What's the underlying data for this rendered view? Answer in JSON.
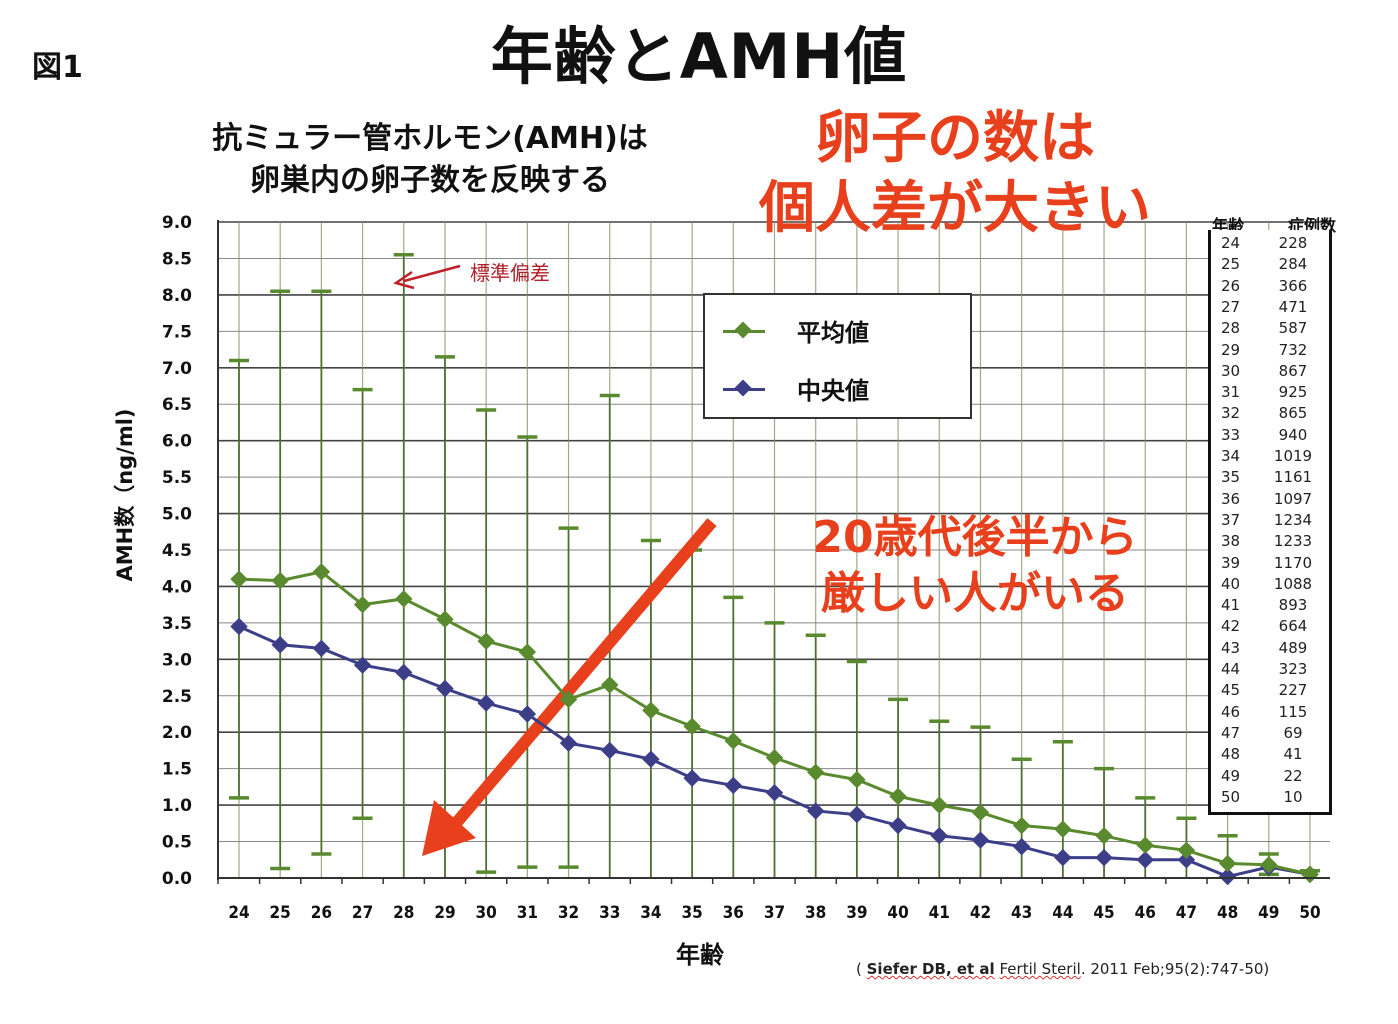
{
  "figure_label": "図1",
  "title": "年齢とAMH値",
  "subtitle_lines": [
    "抗ミュラー管ホルモン(AMH)は",
    "卵巣内の卵子数を反映する"
  ],
  "annotations": {
    "red_note_1": [
      "卵子の数は",
      "個人差が大きい"
    ],
    "red_note_2": [
      "20歳代後半から",
      "厳しい人がいる"
    ],
    "sd_label": "標準偏差",
    "accent_color": "#e8401c"
  },
  "legend": {
    "items": [
      {
        "label": "平均値",
        "color": "#5a8a2e"
      },
      {
        "label": "中央値",
        "color": "#3c3f88"
      }
    ]
  },
  "case_table": {
    "headers": [
      "年齢",
      "症例数"
    ],
    "rows": [
      [
        "24",
        "228"
      ],
      [
        "25",
        "284"
      ],
      [
        "26",
        "366"
      ],
      [
        "27",
        "471"
      ],
      [
        "28",
        "587"
      ],
      [
        "29",
        "732"
      ],
      [
        "30",
        "867"
      ],
      [
        "31",
        "925"
      ],
      [
        "32",
        "865"
      ],
      [
        "33",
        "940"
      ],
      [
        "34",
        "1019"
      ],
      [
        "35",
        "1161"
      ],
      [
        "36",
        "1097"
      ],
      [
        "37",
        "1234"
      ],
      [
        "38",
        "1233"
      ],
      [
        "39",
        "1170"
      ],
      [
        "40",
        "1088"
      ],
      [
        "41",
        "893"
      ],
      [
        "42",
        "664"
      ],
      [
        "43",
        "489"
      ],
      [
        "44",
        "323"
      ],
      [
        "45",
        "227"
      ],
      [
        "46",
        "115"
      ],
      [
        "47",
        "69"
      ],
      [
        "48",
        "41"
      ],
      [
        "49",
        "22"
      ],
      [
        "50",
        "10"
      ]
    ]
  },
  "citation": {
    "open": "( ",
    "author": "Siefer DB, et al",
    "journal": "Fertil Steril",
    "rest": ". 2011 Feb;95(2):747-50)"
  },
  "chart_data": {
    "type": "line",
    "title": "年齢とAMH値",
    "xlabel": "年齢",
    "ylabel": "AMH数（ng/ml)",
    "ylim": [
      0,
      9.0
    ],
    "yticks": [
      "0.0",
      "0.5",
      "1.0",
      "1.5",
      "2.0",
      "2.5",
      "3.0",
      "3.5",
      "4.0",
      "4.5",
      "5.0",
      "5.5",
      "6.0",
      "6.5",
      "7.0",
      "7.5",
      "8.0",
      "8.5",
      "9.0"
    ],
    "grid": true,
    "legend_position": "upper center",
    "x": [
      24,
      25,
      26,
      27,
      28,
      29,
      30,
      31,
      32,
      33,
      34,
      35,
      36,
      37,
      38,
      39,
      40,
      41,
      42,
      43,
      44,
      45,
      46,
      47,
      48,
      49,
      50
    ],
    "series": [
      {
        "name": "平均値",
        "color": "#5a8a2e",
        "marker": "diamond",
        "values": [
          4.1,
          4.08,
          4.2,
          3.75,
          3.83,
          3.55,
          3.25,
          3.1,
          2.45,
          2.65,
          2.3,
          2.08,
          1.88,
          1.65,
          1.45,
          1.35,
          1.12,
          1.0,
          0.9,
          0.72,
          0.67,
          0.58,
          0.45,
          0.38,
          0.2,
          0.18,
          0.05
        ]
      },
      {
        "name": "中央値",
        "color": "#3c3f88",
        "marker": "diamond",
        "values": [
          3.45,
          3.2,
          3.15,
          2.92,
          2.82,
          2.6,
          2.4,
          2.25,
          1.85,
          1.75,
          1.63,
          1.37,
          1.27,
          1.17,
          0.92,
          0.87,
          0.72,
          0.58,
          0.52,
          0.43,
          0.28,
          0.28,
          0.25,
          0.25,
          0.02,
          0.15,
          0.05
        ]
      }
    ],
    "error_bars": {
      "name": "標準偏差",
      "upper": [
        7.1,
        8.05,
        8.05,
        6.7,
        8.55,
        7.15,
        6.42,
        6.05,
        4.8,
        6.62,
        4.63,
        4.5,
        3.85,
        3.5,
        3.33,
        2.97,
        2.45,
        2.15,
        2.07,
        1.63,
        1.87,
        1.5,
        1.1,
        0.82,
        0.58,
        0.33,
        0.1
      ],
      "lower": [
        1.1,
        0.13,
        0.33,
        0.82,
        0,
        0,
        0.08,
        0.15,
        0.15,
        0,
        0,
        0,
        0,
        0,
        0,
        0,
        0,
        0,
        0,
        0,
        0,
        0,
        0,
        0,
        0,
        0.05,
        0
      ]
    },
    "case_counts": [
      228,
      284,
      366,
      471,
      587,
      732,
      867,
      925,
      865,
      940,
      1019,
      1161,
      1097,
      1234,
      1233,
      1170,
      1088,
      893,
      664,
      489,
      323,
      227,
      115,
      69,
      41,
      22,
      10
    ]
  }
}
